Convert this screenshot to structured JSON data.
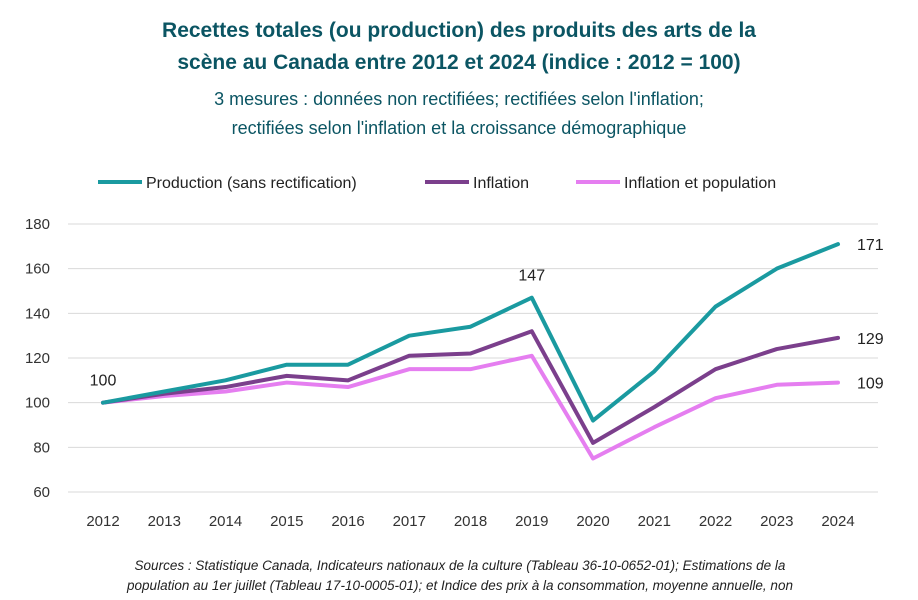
{
  "title": {
    "line1": "Recettes totales (ou production) des produits des arts de la",
    "line2": "scène au Canada entre 2012 et 2024 (indice : 2012 = 100)"
  },
  "subtitle": {
    "line1": "3 mesures : données non rectifiées; rectifiées selon l'inflation;",
    "line2": "rectifiées selon l'inflation et la croissance démographique"
  },
  "source": {
    "line1": "Sources : Statistique Canada, Indicateurs nationaux de la culture (Tableau 36-10-0652-01); Estimations de la",
    "line2": "population au 1er juillet (Tableau 17-10-0005-01); et Indice des prix à la consommation, moyenne annuelle, non"
  },
  "chart_data": {
    "type": "line",
    "categories": [
      "2012",
      "2013",
      "2014",
      "2015",
      "2016",
      "2017",
      "2018",
      "2019",
      "2020",
      "2021",
      "2022",
      "2023",
      "2024"
    ],
    "ylim": [
      60,
      180
    ],
    "yticks": [
      60,
      80,
      100,
      120,
      140,
      160,
      180
    ],
    "grid": true,
    "legend_position": "top",
    "series": [
      {
        "name": "Production (sans rectification)",
        "color": "#1a9aa0",
        "values": [
          100,
          105,
          110,
          117,
          117,
          130,
          134,
          147,
          92,
          114,
          143,
          160,
          171
        ]
      },
      {
        "name": "Inflation",
        "color": "#7b3f8c",
        "values": [
          100,
          104,
          107,
          112,
          110,
          121,
          122,
          132,
          82,
          98,
          115,
          124,
          129
        ]
      },
      {
        "name": "Inflation et population",
        "color": "#e57ef0",
        "values": [
          100,
          103,
          105,
          109,
          107,
          115,
          115,
          121,
          75,
          89,
          102,
          108,
          109
        ]
      }
    ],
    "annotations": [
      {
        "series": 0,
        "index": 0,
        "label": "100"
      },
      {
        "series": 0,
        "index": 7,
        "label": "147"
      },
      {
        "series": 0,
        "index": 12,
        "label": "171"
      },
      {
        "series": 1,
        "index": 12,
        "label": "129"
      },
      {
        "series": 2,
        "index": 12,
        "label": "109"
      }
    ]
  }
}
